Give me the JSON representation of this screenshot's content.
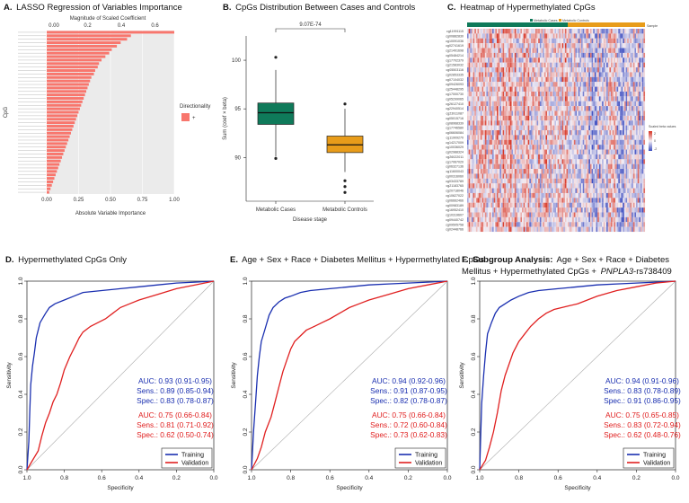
{
  "colors": {
    "lasso_bar": "#f8766d",
    "grid_bg": "#ebebeb",
    "box_cases": "#0f7a5a",
    "box_controls": "#e89c1a",
    "heat_low": "#3b4cc0",
    "heat_mid": "#f4eef4",
    "heat_high": "#d7301f",
    "training": "#1a2fb0",
    "validation": "#e02020"
  },
  "chart_data": [
    {
      "type": "bar",
      "panel": "A",
      "title_letter": "A.",
      "title": "LASSO Regression of Variables Importance",
      "top_axis_label": "Magnitude of Scaled Coefficient",
      "top_ticks": [
        "0.00",
        "0.2",
        "0.4",
        "0.6"
      ],
      "xlabel": "Absolute Variable Importance",
      "ylabel": "CpG",
      "x_ticks": [
        "0.00",
        "0.25",
        "0.50",
        "0.75",
        "1.00"
      ],
      "xlim": [
        0,
        1
      ],
      "legend_title": "Directionality",
      "legend_entries": [
        "+"
      ],
      "values": [
        1.0,
        0.66,
        0.63,
        0.58,
        0.55,
        0.51,
        0.49,
        0.46,
        0.43,
        0.41,
        0.4,
        0.38,
        0.37,
        0.35,
        0.34,
        0.33,
        0.32,
        0.31,
        0.3,
        0.29,
        0.28,
        0.27,
        0.26,
        0.25,
        0.24,
        0.23,
        0.22,
        0.21,
        0.2,
        0.19,
        0.18,
        0.17,
        0.16,
        0.15,
        0.14,
        0.13,
        0.12,
        0.11,
        0.1,
        0.09,
        0.08,
        0.07,
        0.06,
        0.05,
        0.04,
        0.03,
        0.02
      ]
    },
    {
      "type": "box",
      "panel": "B",
      "title_letter": "B.",
      "title": "CpGs Distribution Between Cases and Controls",
      "xlabel": "Disease stage",
      "ylabel": "Sum (coef × beta)",
      "ylim": [
        85.5,
        102.5
      ],
      "y_ticks": [
        90,
        95,
        100
      ],
      "p_value": "9.07E-74",
      "groups": [
        {
          "name": "Metabolic Cases",
          "q1": 93.4,
          "median": 94.6,
          "q3": 95.6,
          "whisker_low": 90.1,
          "whisker_high": 99.0,
          "outliers": [
            100.3,
            89.9
          ]
        },
        {
          "name": "Metabolic Controls",
          "q1": 90.5,
          "median": 91.3,
          "q3": 92.2,
          "whisker_low": 88.5,
          "whisker_high": 95.0,
          "outliers": [
            95.5,
            87.6,
            87.0,
            86.4
          ]
        }
      ]
    },
    {
      "type": "heatmap",
      "panel": "C",
      "title_letter": "C.",
      "title": "Heatmap of Hypermethylated CpGs",
      "annotation_label": "Sample",
      "group_labels": [
        "Metabolic Cases",
        "Metabolic Controls"
      ],
      "legend_title": "Scaled beta values",
      "legend_ticks": [
        "2",
        "0",
        "-2"
      ],
      "row_labels": [
        "cg11991115",
        "cg00882830",
        "cg10091036",
        "cg02741619",
        "cg21491698",
        "cg05484214",
        "cg17702379",
        "cg21583032",
        "cg05503116",
        "cg02853335",
        "cg07104032",
        "cg09426093",
        "cg25448295",
        "cg17000730",
        "cg05299065",
        "cg26127410",
        "cg22940514",
        "cg23911087",
        "cg05015716",
        "cg08968339",
        "cg17746580",
        "cg06606084",
        "cg11909270",
        "cg14217009",
        "cg10036029",
        "cg02988324",
        "cg26022011",
        "cg17067020",
        "cg06327136",
        "cg11600043",
        "cg00316060",
        "cg03433789",
        "cg21183765",
        "cg20718046",
        "cg10627022",
        "cg06662466",
        "cg00983189",
        "cg16952410",
        "cg10319607",
        "cg09440742",
        "cg09505758",
        "cg02448766"
      ]
    },
    {
      "type": "roc",
      "panel": "D",
      "title_letter": "D.",
      "title_bold": "",
      "title": "Hypermethylated CpGs Only",
      "title_line2_plain": "",
      "title_italic": "",
      "title_tail": "",
      "xlabel": "Specificity",
      "ylabel": "Sensitivity",
      "x_ticks": [
        "1.0",
        "0.8",
        "0.6",
        "0.4",
        "0.2",
        "0.0"
      ],
      "y_ticks": [
        "0.0",
        "0.2",
        "0.4",
        "0.6",
        "0.8",
        "1.0"
      ],
      "training_stats": [
        "AUC: 0.93 (0.91-0.95)",
        "Sens.: 0.89 (0.85-0.94)",
        "Spec.: 0.83 (0.78-0.87)"
      ],
      "validation_stats": [
        "AUC: 0.75 (0.66-0.84)",
        "Sens.: 0.81 (0.71-0.92)",
        "Spec.: 0.62 (0.50-0.74)"
      ],
      "legend": [
        "Training",
        "Validation"
      ],
      "series": [
        {
          "name": "Training",
          "specificity": [
            1.0,
            0.99,
            0.985,
            0.98,
            0.97,
            0.96,
            0.95,
            0.93,
            0.9,
            0.88,
            0.85,
            0.8,
            0.75,
            0.7,
            0.6,
            0.5,
            0.4,
            0.3,
            0.2,
            0.1,
            0.0
          ],
          "sensitivity": [
            0.0,
            0.15,
            0.3,
            0.45,
            0.55,
            0.62,
            0.7,
            0.78,
            0.83,
            0.86,
            0.88,
            0.9,
            0.92,
            0.94,
            0.95,
            0.96,
            0.97,
            0.98,
            0.99,
            0.995,
            1.0
          ]
        },
        {
          "name": "Validation",
          "specificity": [
            1.0,
            0.97,
            0.94,
            0.92,
            0.9,
            0.88,
            0.86,
            0.84,
            0.82,
            0.8,
            0.77,
            0.74,
            0.72,
            0.7,
            0.66,
            0.62,
            0.58,
            0.54,
            0.5,
            0.45,
            0.4,
            0.3,
            0.2,
            0.1,
            0.0
          ],
          "sensitivity": [
            0.0,
            0.05,
            0.1,
            0.18,
            0.25,
            0.3,
            0.36,
            0.4,
            0.46,
            0.53,
            0.6,
            0.66,
            0.7,
            0.73,
            0.76,
            0.78,
            0.8,
            0.83,
            0.86,
            0.88,
            0.9,
            0.93,
            0.96,
            0.98,
            1.0
          ]
        }
      ]
    },
    {
      "type": "roc",
      "panel": "E",
      "title_letter": "E.",
      "title_bold": "",
      "title": "Age + Sex + Race + Diabetes Mellitus + Hypermethylated CpGs",
      "title_line2_plain": "",
      "title_italic": "",
      "title_tail": "",
      "xlabel": "Specificity",
      "ylabel": "Sensitivity",
      "x_ticks": [
        "1.0",
        "0.8",
        "0.6",
        "0.4",
        "0.2",
        "0.0"
      ],
      "y_ticks": [
        "0.0",
        "0.2",
        "0.4",
        "0.6",
        "0.8",
        "1.0"
      ],
      "training_stats": [
        "AUC: 0.94 (0.92-0.96)",
        "Sens.: 0.91 (0.87-0.95)",
        "Spec.: 0.82 (0.78-0.87)"
      ],
      "validation_stats": [
        "AUC: 0.75 (0.66-0.84)",
        "Sens.: 0.72 (0.60-0.84)",
        "Spec.: 0.73 (0.62-0.83)"
      ],
      "legend": [
        "Training",
        "Validation"
      ],
      "series": [
        {
          "name": "Training",
          "specificity": [
            1.0,
            0.99,
            0.98,
            0.97,
            0.96,
            0.95,
            0.93,
            0.91,
            0.89,
            0.86,
            0.83,
            0.8,
            0.75,
            0.7,
            0.6,
            0.5,
            0.4,
            0.3,
            0.2,
            0.1,
            0.0
          ],
          "sensitivity": [
            0.0,
            0.2,
            0.35,
            0.5,
            0.6,
            0.68,
            0.75,
            0.82,
            0.86,
            0.89,
            0.91,
            0.92,
            0.94,
            0.95,
            0.96,
            0.97,
            0.98,
            0.985,
            0.99,
            0.995,
            1.0
          ]
        },
        {
          "name": "Validation",
          "specificity": [
            1.0,
            0.97,
            0.95,
            0.93,
            0.9,
            0.88,
            0.86,
            0.84,
            0.82,
            0.8,
            0.78,
            0.75,
            0.72,
            0.68,
            0.64,
            0.6,
            0.55,
            0.5,
            0.45,
            0.4,
            0.3,
            0.2,
            0.1,
            0.0
          ],
          "sensitivity": [
            0.0,
            0.06,
            0.12,
            0.2,
            0.28,
            0.36,
            0.44,
            0.52,
            0.58,
            0.64,
            0.68,
            0.71,
            0.74,
            0.76,
            0.78,
            0.8,
            0.83,
            0.86,
            0.88,
            0.9,
            0.93,
            0.96,
            0.98,
            1.0
          ]
        }
      ]
    },
    {
      "type": "roc",
      "panel": "F",
      "title_letter": "F.",
      "title_bold": "Subgroup Analysis:",
      "title": "Age + Sex + Race + Diabetes",
      "title_line2_plain": "Mellitus + Hypermethylated CpGs +",
      "title_italic": "PNPLA3",
      "title_tail": "-rs738409",
      "xlabel": "Specificity",
      "ylabel": "Sensitivity",
      "x_ticks": [
        "1.0",
        "0.8",
        "0.6",
        "0.4",
        "0.2",
        "0.0"
      ],
      "y_ticks": [
        "0.0",
        "0.2",
        "0.4",
        "0.6",
        "0.8",
        "1.0"
      ],
      "training_stats": [
        "AUC: 0.94 (0.91-0.96)",
        "Sens.: 0.83 (0.78-0.89)",
        "Spec.: 0.91 (0.86-0.95)"
      ],
      "validation_stats": [
        "AUC: 0.75 (0.65-0.85)",
        "Sens.: 0.83 (0.72-0.94)",
        "Spec.: 0.62 (0.48-0.76)"
      ],
      "legend": [
        "Training",
        "Validation"
      ],
      "series": [
        {
          "name": "Training",
          "specificity": [
            1.0,
            0.995,
            0.99,
            0.98,
            0.97,
            0.96,
            0.94,
            0.92,
            0.9,
            0.87,
            0.84,
            0.8,
            0.75,
            0.7,
            0.6,
            0.5,
            0.4,
            0.3,
            0.2,
            0.1,
            0.0
          ],
          "sensitivity": [
            0.0,
            0.18,
            0.35,
            0.5,
            0.62,
            0.72,
            0.78,
            0.83,
            0.86,
            0.88,
            0.9,
            0.92,
            0.94,
            0.95,
            0.96,
            0.97,
            0.98,
            0.985,
            0.99,
            0.995,
            1.0
          ]
        },
        {
          "name": "Validation",
          "specificity": [
            1.0,
            0.97,
            0.95,
            0.93,
            0.91,
            0.89,
            0.87,
            0.85,
            0.83,
            0.8,
            0.77,
            0.74,
            0.7,
            0.66,
            0.62,
            0.58,
            0.54,
            0.5,
            0.45,
            0.4,
            0.3,
            0.2,
            0.1,
            0.0
          ],
          "sensitivity": [
            0.0,
            0.05,
            0.12,
            0.2,
            0.3,
            0.42,
            0.5,
            0.56,
            0.62,
            0.68,
            0.72,
            0.76,
            0.8,
            0.83,
            0.85,
            0.86,
            0.87,
            0.88,
            0.9,
            0.92,
            0.95,
            0.97,
            0.99,
            1.0
          ]
        }
      ]
    }
  ]
}
